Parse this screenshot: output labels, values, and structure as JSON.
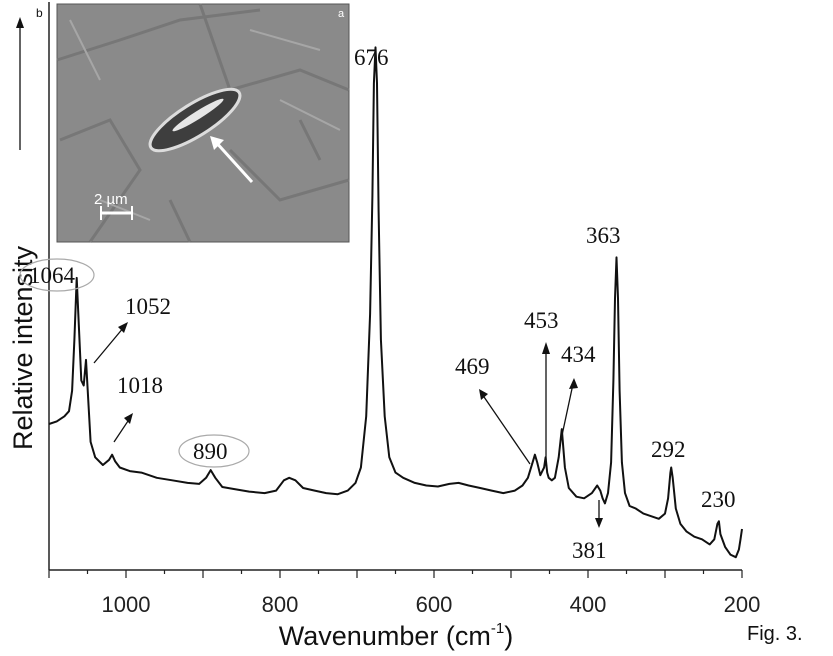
{
  "chart_data": {
    "type": "line",
    "xlabel": "Wavenumber (cm",
    "xlabel_sup": "-1",
    "xlabel_close": ")",
    "ylabel": "Relative intensity",
    "xlim": [
      1100,
      200
    ],
    "x_reversed": true,
    "xticks": [
      1000,
      800,
      600,
      400,
      200
    ],
    "grid": false,
    "panel_label": "b",
    "series": [
      {
        "x": [
          1100,
          1090,
          1080,
          1074,
          1070,
          1067,
          1064,
          1061,
          1058,
          1055,
          1052,
          1049,
          1046,
          1040,
          1030,
          1022,
          1018,
          1014,
          1008,
          995,
          980,
          960,
          940,
          920,
          905,
          896,
          890,
          884,
          875,
          860,
          840,
          820,
          805,
          795,
          788,
          780,
          770,
          755,
          740,
          725,
          712,
          702,
          695,
          688,
          683,
          680,
          678,
          676,
          674,
          672,
          669,
          664,
          658,
          650,
          640,
          625,
          610,
          595,
          580,
          568,
          555,
          540,
          525,
          510,
          495,
          485,
          478,
          472,
          469,
          466,
          462,
          457,
          455,
          453,
          451,
          447,
          443,
          438,
          434,
          430,
          425,
          415,
          405,
          395,
          388,
          384,
          381,
          378,
          374,
          370,
          367,
          365,
          363,
          361,
          359,
          356,
          352,
          346,
          338,
          328,
          318,
          308,
          300,
          296,
          293,
          292,
          290,
          286,
          280,
          272,
          262,
          252,
          242,
          236,
          232,
          230,
          228,
          222,
          215,
          208,
          204,
          202,
          200
        ],
        "y": [
          0.535,
          0.54,
          0.55,
          0.56,
          0.6,
          0.7,
          0.82,
          0.72,
          0.62,
          0.61,
          0.66,
          0.58,
          0.5,
          0.47,
          0.455,
          0.465,
          0.475,
          0.462,
          0.45,
          0.443,
          0.44,
          0.43,
          0.425,
          0.42,
          0.418,
          0.43,
          0.445,
          0.43,
          0.412,
          0.408,
          0.403,
          0.4,
          0.405,
          0.425,
          0.43,
          0.425,
          0.41,
          0.405,
          0.4,
          0.398,
          0.405,
          0.42,
          0.45,
          0.55,
          0.75,
          0.98,
          1.2,
          1.27,
          1.2,
          0.95,
          0.7,
          0.55,
          0.47,
          0.44,
          0.43,
          0.42,
          0.415,
          0.413,
          0.418,
          0.42,
          0.415,
          0.41,
          0.405,
          0.4,
          0.405,
          0.415,
          0.43,
          0.46,
          0.475,
          0.46,
          0.435,
          0.45,
          0.47,
          0.44,
          0.43,
          0.425,
          0.43,
          0.47,
          0.525,
          0.45,
          0.41,
          0.393,
          0.39,
          0.4,
          0.415,
          0.405,
          0.39,
          0.38,
          0.4,
          0.46,
          0.62,
          0.78,
          0.86,
          0.78,
          0.6,
          0.46,
          0.4,
          0.375,
          0.37,
          0.36,
          0.355,
          0.35,
          0.36,
          0.39,
          0.44,
          0.45,
          0.43,
          0.37,
          0.34,
          0.325,
          0.315,
          0.31,
          0.3,
          0.31,
          0.34,
          0.345,
          0.32,
          0.295,
          0.28,
          0.275,
          0.29,
          0.31,
          0.33
        ]
      }
    ],
    "peaks": [
      {
        "label": "1064",
        "circled": true
      },
      {
        "label": "1052",
        "circled": false
      },
      {
        "label": "1018",
        "circled": false
      },
      {
        "label": "890",
        "circled": true
      },
      {
        "label": "676",
        "circled": false
      },
      {
        "label": "469",
        "circled": false
      },
      {
        "label": "453",
        "circled": false
      },
      {
        "label": "434",
        "circled": false
      },
      {
        "label": "381",
        "circled": false
      },
      {
        "label": "363",
        "circled": false
      },
      {
        "label": "292",
        "circled": false
      },
      {
        "label": "230",
        "circled": false
      }
    ],
    "inset": {
      "label": "a",
      "scale_bar": "2 µm",
      "description_colors": {
        "bg": "#8e8e8e",
        "arrow": "#ffffff"
      }
    }
  },
  "caption": "Fig. 3.",
  "colors": {
    "line": "#111111",
    "axis": "#222222"
  }
}
